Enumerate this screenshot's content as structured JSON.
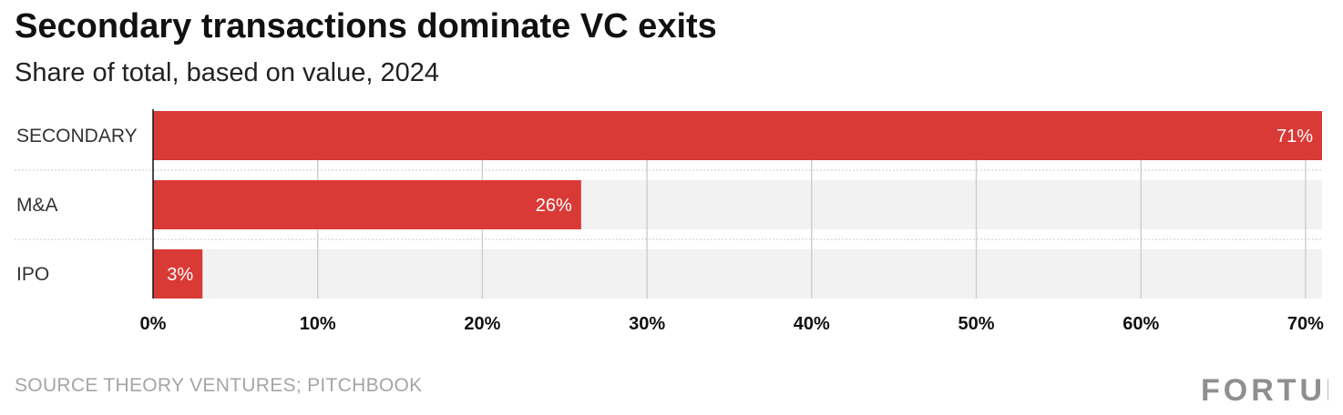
{
  "header": {
    "title": "Secondary transactions dominate VC exits",
    "subtitle": "Share of total, based on value, 2024"
  },
  "footer": {
    "source": "SOURCE THEORY VENTURES; PITCHBOOK",
    "logo": "FORTUNE"
  },
  "colors": {
    "bar": "#d93a35",
    "track": "#f2f2f2",
    "grid": "#cfcfcf"
  },
  "chart_data": {
    "type": "bar",
    "orientation": "horizontal",
    "title": "Secondary transactions dominate VC exits",
    "subtitle": "Share of total, based on value, 2024",
    "categories": [
      "SECONDARY",
      "M&A",
      "IPO"
    ],
    "values": [
      71,
      26,
      3
    ],
    "data_labels": [
      "71%",
      "26%",
      "3%"
    ],
    "xlim": [
      0,
      71
    ],
    "x_ticks": [
      0,
      10,
      20,
      30,
      40,
      50,
      60,
      70
    ],
    "x_tick_labels": [
      "0%",
      "10%",
      "20%",
      "30%",
      "40%",
      "50%",
      "60%",
      "70%"
    ],
    "grid": true
  }
}
